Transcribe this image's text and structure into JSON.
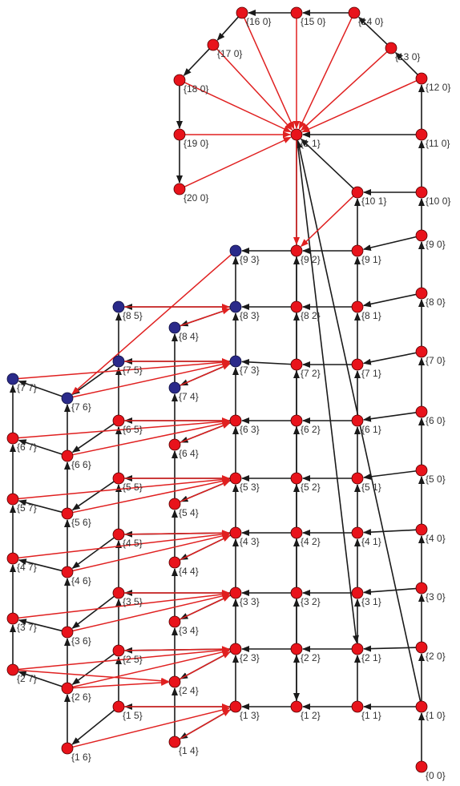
{
  "colors": {
    "node_default": "#e8131b",
    "node_highlight": "#2a2a8a",
    "edge_black": "#1a1a1a",
    "edge_red": "#e02020",
    "label": "#333333"
  },
  "nodes": [
    {
      "id": "0 0",
      "label": "{0 0}"
    },
    {
      "id": "1 0",
      "label": "{1 0}"
    },
    {
      "id": "2 0",
      "label": "{2 0}"
    },
    {
      "id": "3 0",
      "label": "{3 0}"
    },
    {
      "id": "4 0",
      "label": "{4 0}"
    },
    {
      "id": "5 0",
      "label": "{5 0}"
    },
    {
      "id": "6 0",
      "label": "{6 0}"
    },
    {
      "id": "7 0",
      "label": "{7 0}"
    },
    {
      "id": "8 0",
      "label": "{8 0}"
    },
    {
      "id": "9 0",
      "label": "{9 0}"
    },
    {
      "id": "10 0",
      "label": "{10 0}"
    },
    {
      "id": "11 0",
      "label": "{11 0}"
    },
    {
      "id": "12 0",
      "label": "{12 0}"
    },
    {
      "id": "13 0",
      "label": "{13 0}"
    },
    {
      "id": "14 0",
      "label": "{14 0}"
    },
    {
      "id": "15 0",
      "label": "{15 0}"
    },
    {
      "id": "16 0",
      "label": "{16 0}"
    },
    {
      "id": "17 0",
      "label": "{17 0}"
    },
    {
      "id": "18 0",
      "label": "{18 0}"
    },
    {
      "id": "19 0",
      "label": "{19 0}"
    },
    {
      "id": "20 0",
      "label": "{20 0}"
    },
    {
      "id": "1 1",
      "label": "{1 1}"
    },
    {
      "id": "2 1",
      "label": "{2 1}"
    },
    {
      "id": "3 1",
      "label": "{3 1}"
    },
    {
      "id": "4 1",
      "label": "{4 1}"
    },
    {
      "id": "5 1",
      "label": "{5 1}"
    },
    {
      "id": "6 1",
      "label": "{6 1}"
    },
    {
      "id": "7 1",
      "label": "{7 1}"
    },
    {
      "id": "8 1",
      "label": "{8 1}"
    },
    {
      "id": "9 1",
      "label": "{9 1}"
    },
    {
      "id": "10 1",
      "label": "{10 1}"
    },
    {
      "id": "1 2",
      "label": "{1 2}"
    },
    {
      "id": "2 2",
      "label": "{2 2}"
    },
    {
      "id": "3 2",
      "label": "{3 2}"
    },
    {
      "id": "4 2",
      "label": "{4 2}"
    },
    {
      "id": "5 2",
      "label": "{5 2}"
    },
    {
      "id": "6 2",
      "label": "{6 2}"
    },
    {
      "id": "7 2",
      "label": "{7 2}"
    },
    {
      "id": "8 2",
      "label": "{8 2}"
    },
    {
      "id": "9 2",
      "label": "{9 2}"
    },
    {
      "id": "1 3",
      "label": "{1 3}"
    },
    {
      "id": "2 3",
      "label": "{2 3}"
    },
    {
      "id": "3 3",
      "label": "{3 3}"
    },
    {
      "id": "4 3",
      "label": "{4 3}"
    },
    {
      "id": "5 3",
      "label": "{5 3}"
    },
    {
      "id": "6 3",
      "label": "{6 3}"
    },
    {
      "id": "7 3",
      "label": "{7 3}",
      "highlight": true
    },
    {
      "id": "8 3",
      "label": "{8 3}",
      "highlight": true
    },
    {
      "id": "9 3",
      "label": "{9 3}",
      "highlight": true
    },
    {
      "id": "1 4",
      "label": "{1 4}"
    },
    {
      "id": "2 4",
      "label": "{2 4}"
    },
    {
      "id": "3 4",
      "label": "{3 4}"
    },
    {
      "id": "4 4",
      "label": "{4 4}"
    },
    {
      "id": "5 4",
      "label": "{5 4}"
    },
    {
      "id": "6 4",
      "label": "{6 4}"
    },
    {
      "id": "7 4",
      "label": "{7 4}",
      "highlight": true
    },
    {
      "id": "8 4",
      "label": "{8 4}",
      "highlight": true
    },
    {
      "id": "1 5",
      "label": "{1 5}"
    },
    {
      "id": "2 5",
      "label": "{2 5}"
    },
    {
      "id": "3 5",
      "label": "{3 5}"
    },
    {
      "id": "4 5",
      "label": "{4 5}"
    },
    {
      "id": "5 5",
      "label": "{5 5}"
    },
    {
      "id": "6 5",
      "label": "{6 5}"
    },
    {
      "id": "7 5",
      "label": "{7 5}",
      "highlight": true
    },
    {
      "id": "8 5",
      "label": "{8 5}",
      "highlight": true
    },
    {
      "id": "1 6",
      "label": "{1 6}"
    },
    {
      "id": "2 6",
      "label": "{2 6}"
    },
    {
      "id": "3 6",
      "label": "{3 6}"
    },
    {
      "id": "4 6",
      "label": "{4 6}"
    },
    {
      "id": "5 6",
      "label": "{5 6}"
    },
    {
      "id": "6 6",
      "label": "{6 6}"
    },
    {
      "id": "7 6",
      "label": "{7 6}",
      "highlight": true
    },
    {
      "id": "2 7",
      "label": "{2 7}"
    },
    {
      "id": "3 7",
      "label": "{3 7}"
    },
    {
      "id": "4 7",
      "label": "{4 7}"
    },
    {
      "id": "5 7",
      "label": "{5 7}"
    },
    {
      "id": "6 7",
      "label": "{6 7}"
    },
    {
      "id": "7 7",
      "label": "{7 7}",
      "highlight": true
    }
  ],
  "edges_black": [
    [
      "0 0",
      "1 0"
    ],
    [
      "1 0",
      "2 0"
    ],
    [
      "2 0",
      "3 0"
    ],
    [
      "3 0",
      "4 0"
    ],
    [
      "4 0",
      "5 0"
    ],
    [
      "5 0",
      "6 0"
    ],
    [
      "6 0",
      "7 0"
    ],
    [
      "7 0",
      "8 0"
    ],
    [
      "8 0",
      "9 0"
    ],
    [
      "9 0",
      "10 0"
    ],
    [
      "10 0",
      "11 0"
    ],
    [
      "11 0",
      "12 0"
    ],
    [
      "12 0",
      "13 0"
    ],
    [
      "13 0",
      "14 0"
    ],
    [
      "14 0",
      "15 0"
    ],
    [
      "15 0",
      "16 0"
    ],
    [
      "16 0",
      "17 0"
    ],
    [
      "17 0",
      "18 0"
    ],
    [
      "18 0",
      "19 0"
    ],
    [
      "19 0",
      "20 0"
    ],
    [
      "10 0",
      "10 1"
    ],
    [
      "11 0",
      "1 1"
    ],
    [
      "10 1",
      "1 1"
    ],
    [
      "1 0",
      "1 1"
    ],
    [
      "2 0",
      "2 1"
    ],
    [
      "3 0",
      "3 1"
    ],
    [
      "4 0",
      "4 1"
    ],
    [
      "5 0",
      "5 1"
    ],
    [
      "6 0",
      "6 1"
    ],
    [
      "7 0",
      "7 1"
    ],
    [
      "8 0",
      "8 1"
    ],
    [
      "9 0",
      "9 1"
    ],
    [
      "1 1",
      "2 1"
    ],
    [
      "2 1",
      "3 1"
    ],
    [
      "3 1",
      "4 1"
    ],
    [
      "4 1",
      "5 1"
    ],
    [
      "5 1",
      "6 1"
    ],
    [
      "6 1",
      "7 1"
    ],
    [
      "7 1",
      "8 1"
    ],
    [
      "8 1",
      "9 1"
    ],
    [
      "9 1",
      "10 1"
    ],
    [
      "1 1",
      "1 2"
    ],
    [
      "2 1",
      "2 2"
    ],
    [
      "3 1",
      "3 2"
    ],
    [
      "4 1",
      "4 2"
    ],
    [
      "5 1",
      "5 2"
    ],
    [
      "6 1",
      "6 2"
    ],
    [
      "7 1",
      "7 2"
    ],
    [
      "8 1",
      "8 2"
    ],
    [
      "9 1",
      "9 2"
    ],
    [
      "1 2",
      "2 2"
    ],
    [
      "2 2",
      "3 2"
    ],
    [
      "3 2",
      "4 2"
    ],
    [
      "4 2",
      "5 2"
    ],
    [
      "5 2",
      "6 2"
    ],
    [
      "6 2",
      "7 2"
    ],
    [
      "7 2",
      "8 2"
    ],
    [
      "8 2",
      "9 2"
    ],
    [
      "1 2",
      "1 3"
    ],
    [
      "2 2",
      "2 3"
    ],
    [
      "3 2",
      "3 3"
    ],
    [
      "4 2",
      "4 3"
    ],
    [
      "5 2",
      "5 3"
    ],
    [
      "6 2",
      "6 3"
    ],
    [
      "7 2",
      "7 3"
    ],
    [
      "8 2",
      "8 3"
    ],
    [
      "9 2",
      "9 3"
    ],
    [
      "1 3",
      "2 3"
    ],
    [
      "2 3",
      "3 3"
    ],
    [
      "3 3",
      "4 3"
    ],
    [
      "4 3",
      "5 3"
    ],
    [
      "5 3",
      "6 3"
    ],
    [
      "6 3",
      "7 3"
    ],
    [
      "7 3",
      "8 3"
    ],
    [
      "8 3",
      "9 3"
    ],
    [
      "1 3",
      "1 4"
    ],
    [
      "1 3",
      "1 5"
    ],
    [
      "2 3",
      "2 4"
    ],
    [
      "2 3",
      "2 5"
    ],
    [
      "3 3",
      "3 4"
    ],
    [
      "3 3",
      "3 5"
    ],
    [
      "4 3",
      "4 4"
    ],
    [
      "4 3",
      "4 5"
    ],
    [
      "5 3",
      "5 4"
    ],
    [
      "5 3",
      "5 5"
    ],
    [
      "6 3",
      "6 4"
    ],
    [
      "6 3",
      "6 5"
    ],
    [
      "7 3",
      "7 4"
    ],
    [
      "7 3",
      "7 5"
    ],
    [
      "8 3",
      "8 4"
    ],
    [
      "8 3",
      "8 5"
    ],
    [
      "1 4",
      "2 4"
    ],
    [
      "2 4",
      "3 4"
    ],
    [
      "3 4",
      "4 4"
    ],
    [
      "4 4",
      "5 4"
    ],
    [
      "5 4",
      "6 4"
    ],
    [
      "6 4",
      "7 4"
    ],
    [
      "7 4",
      "8 4"
    ],
    [
      "1 5",
      "2 5"
    ],
    [
      "2 5",
      "3 5"
    ],
    [
      "3 5",
      "4 5"
    ],
    [
      "4 5",
      "5 5"
    ],
    [
      "5 5",
      "6 5"
    ],
    [
      "6 5",
      "7 5"
    ],
    [
      "7 5",
      "8 5"
    ],
    [
      "1 5",
      "1 6"
    ],
    [
      "2 5",
      "2 6"
    ],
    [
      "3 5",
      "3 6"
    ],
    [
      "4 5",
      "4 6"
    ],
    [
      "5 5",
      "5 6"
    ],
    [
      "6 5",
      "6 6"
    ],
    [
      "7 5",
      "7 6"
    ],
    [
      "1 6",
      "2 6"
    ],
    [
      "2 6",
      "3 6"
    ],
    [
      "3 6",
      "4 6"
    ],
    [
      "4 6",
      "5 6"
    ],
    [
      "5 6",
      "6 6"
    ],
    [
      "6 6",
      "7 6"
    ],
    [
      "2 6",
      "2 7"
    ],
    [
      "3 6",
      "3 7"
    ],
    [
      "4 6",
      "4 7"
    ],
    [
      "5 6",
      "5 7"
    ],
    [
      "6 6",
      "6 7"
    ],
    [
      "7 6",
      "7 7"
    ],
    [
      "2 7",
      "3 7"
    ],
    [
      "3 7",
      "4 7"
    ],
    [
      "4 7",
      "5 7"
    ],
    [
      "5 7",
      "6 7"
    ],
    [
      "6 7",
      "7 7"
    ]
  ],
  "edges_red": [
    [
      "12 0",
      "1 1"
    ],
    [
      "13 0",
      "1 1"
    ],
    [
      "14 0",
      "1 1"
    ],
    [
      "15 0",
      "1 1"
    ],
    [
      "16 0",
      "1 1"
    ],
    [
      "17 0",
      "1 1"
    ],
    [
      "18 0",
      "1 1"
    ],
    [
      "19 0",
      "1 1"
    ],
    [
      "20 0",
      "1 1"
    ],
    [
      "1 1",
      "9 2"
    ],
    [
      "10 1",
      "9 2"
    ],
    [
      "9 3",
      "7 6"
    ],
    [
      "1 4",
      "1 3"
    ],
    [
      "1 5",
      "1 3"
    ],
    [
      "1 6",
      "1 3"
    ],
    [
      "2 6",
      "2 4"
    ],
    [
      "2 7",
      "2 4"
    ],
    [
      "2 4",
      "2 3"
    ],
    [
      "2 5",
      "2 3"
    ],
    [
      "2 6",
      "2 3"
    ],
    [
      "2 7",
      "2 3"
    ],
    [
      "3 4",
      "3 3"
    ],
    [
      "3 5",
      "3 3"
    ],
    [
      "3 6",
      "3 3"
    ],
    [
      "3 7",
      "3 3"
    ],
    [
      "4 4",
      "4 3"
    ],
    [
      "4 5",
      "4 3"
    ],
    [
      "4 6",
      "4 3"
    ],
    [
      "4 7",
      "4 3"
    ],
    [
      "5 4",
      "5 3"
    ],
    [
      "5 5",
      "5 3"
    ],
    [
      "5 6",
      "5 3"
    ],
    [
      "5 7",
      "5 3"
    ],
    [
      "6 4",
      "6 3"
    ],
    [
      "6 5",
      "6 3"
    ],
    [
      "6 6",
      "6 3"
    ],
    [
      "6 7",
      "6 3"
    ],
    [
      "7 4",
      "7 3"
    ],
    [
      "7 5",
      "7 3"
    ],
    [
      "7 6",
      "7 3"
    ],
    [
      "7 7",
      "7 3"
    ],
    [
      "8 4",
      "8 3"
    ],
    [
      "8 5",
      "8 3"
    ]
  ]
}
